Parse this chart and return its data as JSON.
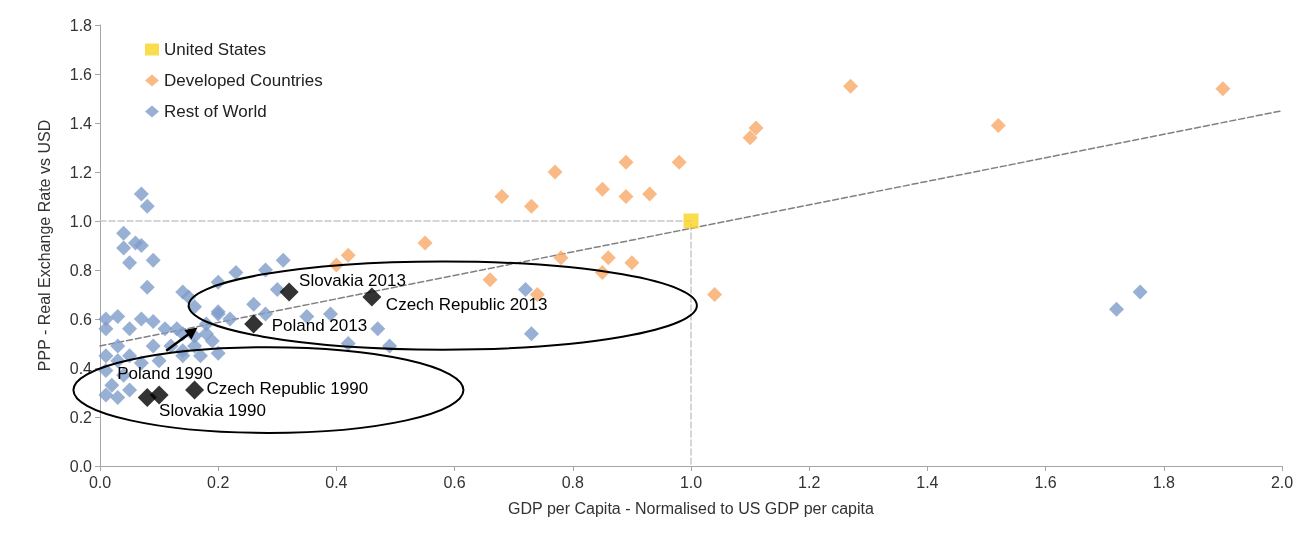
{
  "chart_data": {
    "type": "scatter",
    "xlabel": "GDP per Capita - Normalised to US GDP per capita",
    "ylabel": "PPP - Real Exchange Rate vs USD",
    "xlim": [
      0,
      2.0
    ],
    "xticks": [
      {
        "value": 0,
        "label": "0.0"
      },
      {
        "value": 0.2,
        "label": "0.2"
      },
      {
        "value": 0.4,
        "label": "0.4"
      },
      {
        "value": 0.6,
        "label": "0.6"
      },
      {
        "value": 0.8,
        "label": "0.8"
      },
      {
        "value": 1,
        "label": "1.0"
      },
      {
        "value": 1.2,
        "label": "1.2"
      },
      {
        "value": 1.4,
        "label": "1.4"
      },
      {
        "value": 1.6,
        "label": "1.6"
      },
      {
        "value": 1.8,
        "label": "1.8"
      },
      {
        "value": 2,
        "label": "2.0"
      }
    ],
    "ylim": [
      0,
      1.8
    ],
    "yticks": [
      {
        "value": 0,
        "label": "0.0"
      },
      {
        "value": 0.2,
        "label": "0.2"
      },
      {
        "value": 0.4,
        "label": "0.4"
      },
      {
        "value": 0.6,
        "label": "0.6"
      },
      {
        "value": 0.8,
        "label": "0.8"
      },
      {
        "value": 1,
        "label": "1.0"
      },
      {
        "value": 1.2,
        "label": "1.2"
      },
      {
        "value": 1.4,
        "label": "1.4"
      },
      {
        "value": 1.6,
        "label": "1.6"
      },
      {
        "value": 1.8,
        "label": "1.8"
      }
    ],
    "grid": false,
    "legend": "top left",
    "marker": "diamond",
    "series": [
      {
        "type": "line",
        "color": "#c8c8c8",
        "line_style": "dashed",
        "marker": "none",
        "x": [
          0,
          1,
          1
        ],
        "values": [
          1,
          1,
          0
        ]
      },
      {
        "type": "line",
        "color": "#808080",
        "line_style": "dashed",
        "marker": "none",
        "x": [
          0,
          2
        ],
        "values": [
          0.49,
          1.45
        ]
      },
      {
        "name": "United States",
        "color": "#f9d423",
        "marker": "square",
        "x": [
          1.0
        ],
        "values": [
          1.0
        ]
      },
      {
        "name": "Developed Countries",
        "color": "#f8a968",
        "x": [
          1.27,
          1.9,
          1.52,
          1.11,
          1.1,
          0.55,
          0.68,
          0.73,
          0.77,
          0.85,
          0.89,
          0.89,
          0.93,
          0.98,
          0.78,
          0.86,
          0.85,
          0.9,
          1.04,
          0.66,
          0.74,
          0.42,
          0.4
        ],
        "values": [
          1.55,
          1.54,
          1.39,
          1.38,
          1.34,
          0.91,
          1.1,
          1.06,
          1.2,
          1.13,
          1.24,
          1.1,
          1.11,
          1.24,
          0.85,
          0.85,
          0.79,
          0.83,
          0.7,
          0.76,
          0.7,
          0.86,
          0.82
        ]
      },
      {
        "name": "Rest of World",
        "color": "#7f9ccb",
        "x": [
          1.72,
          1.76,
          0.72,
          0.73,
          0.49,
          0.42,
          0.47,
          0.39,
          0.35,
          0.31,
          0.28,
          0.23,
          0.2,
          0.3,
          0.26,
          0.2,
          0.22,
          0.28,
          0.18,
          0.2,
          0.15,
          0.07,
          0.08,
          0.04,
          0.04,
          0.06,
          0.07,
          0.05,
          0.09,
          0.08,
          0.14,
          0.16,
          0.2,
          0.18,
          0.19,
          0.16,
          0.01,
          0.03,
          0.01,
          0.05,
          0.07,
          0.09,
          0.11,
          0.13,
          0.14,
          0.09,
          0.03,
          0.01,
          0.05,
          0.07,
          0.1,
          0.14,
          0.01,
          0.04,
          0.02,
          0.01,
          0.03,
          0.05,
          0.03,
          0.12,
          0.14,
          0.16,
          0.17
        ],
        "values": [
          0.64,
          0.71,
          0.72,
          0.54,
          0.49,
          0.5,
          0.56,
          0.62,
          0.61,
          0.84,
          0.8,
          0.79,
          0.75,
          0.72,
          0.66,
          0.63,
          0.6,
          0.62,
          0.54,
          0.46,
          0.69,
          1.11,
          1.06,
          0.95,
          0.89,
          0.91,
          0.9,
          0.83,
          0.84,
          0.73,
          0.71,
          0.65,
          0.62,
          0.58,
          0.51,
          0.53,
          0.6,
          0.61,
          0.56,
          0.56,
          0.6,
          0.59,
          0.56,
          0.56,
          0.54,
          0.49,
          0.49,
          0.45,
          0.45,
          0.42,
          0.43,
          0.47,
          0.39,
          0.37,
          0.33,
          0.29,
          0.28,
          0.31,
          0.43,
          0.49,
          0.45,
          0.49,
          0.45
        ]
      },
      {
        "color": "#000000",
        "x": [
          0.32,
          0.46,
          0.26,
          0.08,
          0.1,
          0.16
        ],
        "values": [
          0.71,
          0.69,
          0.58,
          0.28,
          0.29,
          0.31
        ]
      }
    ],
    "annotations": [
      {
        "text": "Slovakia 2013",
        "x": 0.32,
        "y": 0.71
      },
      {
        "text": "Czech Republic 2013",
        "x": 0.46,
        "y": 0.69
      },
      {
        "text": "Poland 2013",
        "x": 0.26,
        "y": 0.58
      },
      {
        "text": "Poland 1990",
        "x": 0.08,
        "y": 0.28
      },
      {
        "text": "Slovakia 1990",
        "x": 0.1,
        "y": 0.29
      },
      {
        "text": "Czech Republic 1990",
        "x": 0.16,
        "y": 0.31
      }
    ]
  }
}
